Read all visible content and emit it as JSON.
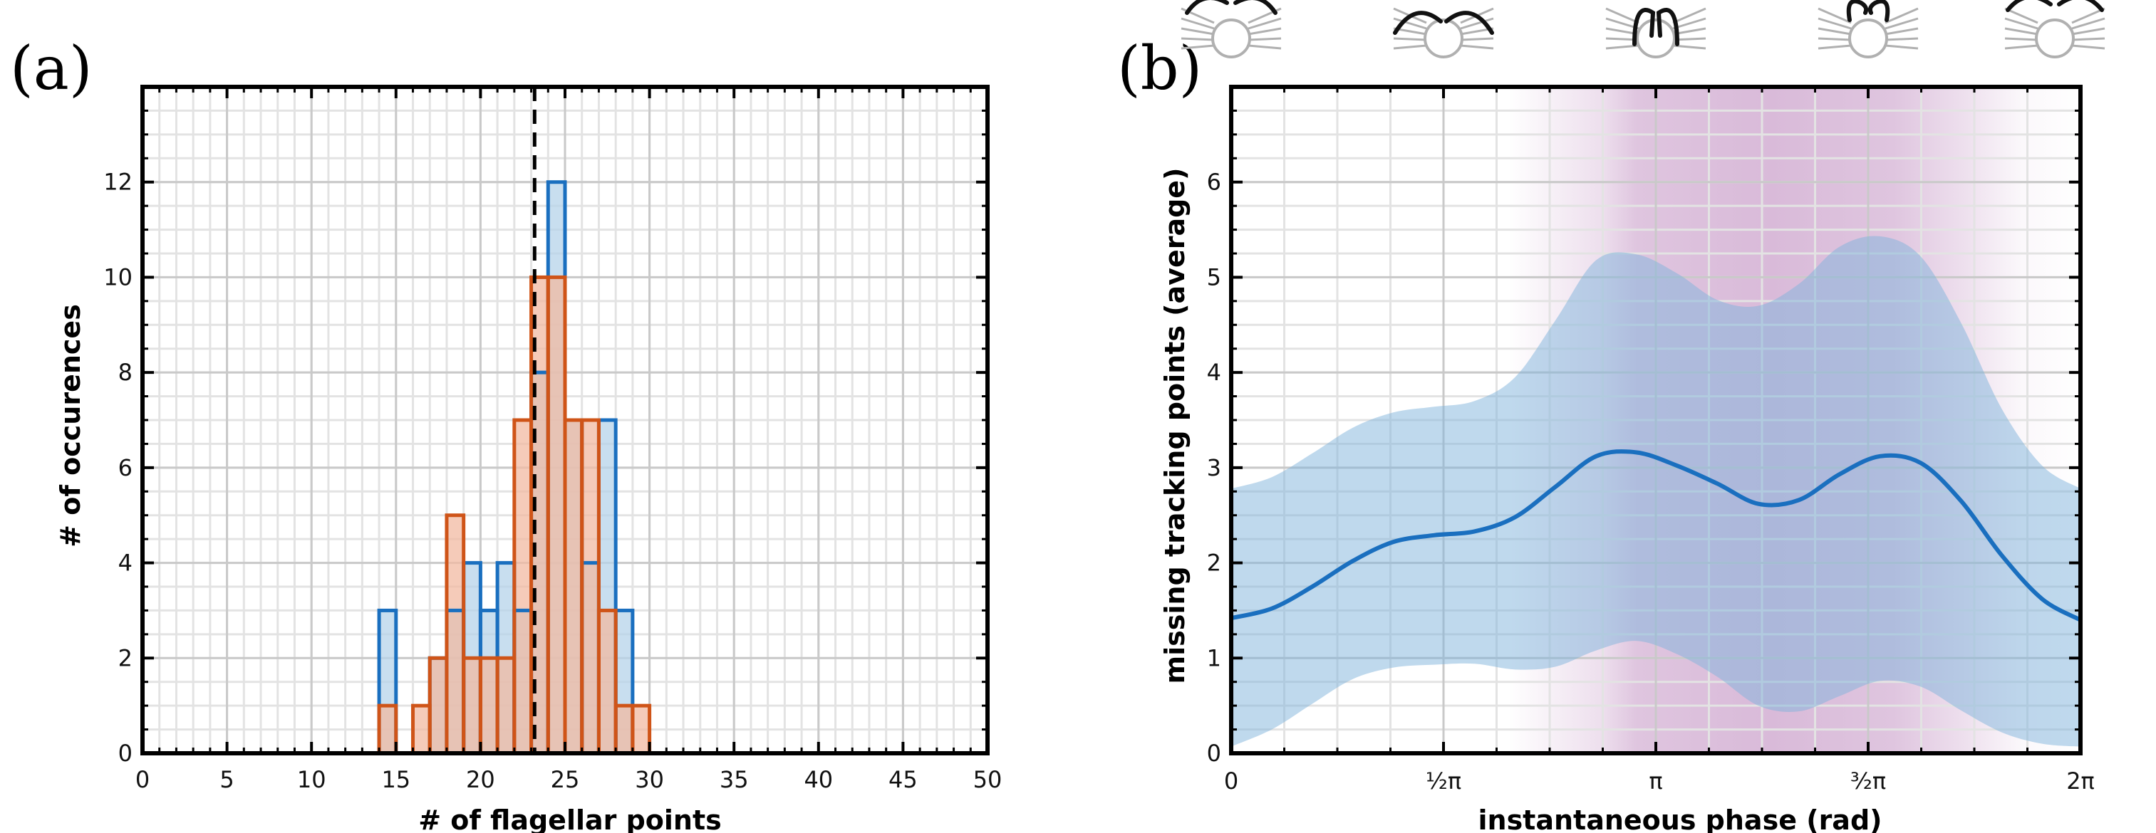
{
  "panels": {
    "a_label": "(a)",
    "b_label": "(b)"
  },
  "chart_data": [
    {
      "type": "bar",
      "subtype": "step-histogram",
      "title": "",
      "xlabel": "# of flagellar points",
      "ylabel": "# of occurences",
      "xlim": [
        0,
        50
      ],
      "ylim": [
        0,
        14
      ],
      "xticks": [
        0,
        5,
        10,
        15,
        20,
        25,
        30,
        35,
        40,
        45,
        50
      ],
      "yticks": [
        0,
        2,
        4,
        6,
        8,
        10,
        12
      ],
      "grid": true,
      "legend": "none",
      "bin_width": 1,
      "bin_starts": [
        14,
        15,
        16,
        17,
        18,
        19,
        20,
        21,
        22,
        23,
        24,
        25,
        26,
        27,
        28,
        29
      ],
      "series": [
        {
          "color": "#1a6fbf",
          "fill": "#b5d3ea",
          "values": [
            3,
            0,
            0,
            2,
            3,
            4,
            3,
            4,
            3,
            8,
            12,
            7,
            4,
            7,
            3,
            0
          ]
        },
        {
          "color": "#cf5418",
          "fill": "#f2b9a1",
          "values": [
            1,
            0,
            1,
            2,
            5,
            2,
            2,
            2,
            7,
            10,
            10,
            7,
            7,
            3,
            1,
            1
          ]
        }
      ],
      "vline": {
        "x": 23.2,
        "style": "dashed",
        "color": "#000000"
      }
    },
    {
      "type": "line",
      "subtype": "mean-with-band",
      "title": "",
      "xlabel": "instantaneous phase (rad)",
      "ylabel": "missing tracking points (average)",
      "xlim": [
        0,
        6.2832
      ],
      "ylim": [
        0,
        7
      ],
      "xticks": [
        0,
        1.5708,
        3.1416,
        4.7124,
        6.2832
      ],
      "xtick_labels": [
        "0",
        "½π",
        "π",
        "³⁄₂π",
        "2π"
      ],
      "yticks": [
        0,
        1,
        2,
        3,
        4,
        5,
        6
      ],
      "grid": true,
      "legend": "none",
      "shaded_phase_region": {
        "x_start": 2.05,
        "x_end": 5.85,
        "peak": 4.0,
        "color": "#9b4a9b"
      },
      "series": [
        {
          "role": "mean",
          "color": "#1a6fbf",
          "x": [
            0,
            0.3,
            0.6,
            0.9,
            1.2,
            1.5,
            1.8,
            2.1,
            2.4,
            2.7,
            3.0,
            3.3,
            3.6,
            3.9,
            4.2,
            4.5,
            4.8,
            5.1,
            5.4,
            5.7,
            6.0,
            6.2832
          ],
          "y": [
            1.42,
            1.52,
            1.75,
            2.02,
            2.22,
            2.29,
            2.33,
            2.48,
            2.8,
            3.12,
            3.16,
            3.02,
            2.83,
            2.62,
            2.66,
            2.93,
            3.12,
            3.05,
            2.65,
            2.08,
            1.62,
            1.4
          ]
        },
        {
          "role": "band-upper",
          "color": "#7fb4dc",
          "x": [
            0,
            0.3,
            0.6,
            0.9,
            1.2,
            1.5,
            1.8,
            2.1,
            2.4,
            2.7,
            3.0,
            3.3,
            3.6,
            3.9,
            4.2,
            4.5,
            4.8,
            5.1,
            5.4,
            5.7,
            6.0,
            6.2832
          ],
          "y": [
            2.78,
            2.9,
            3.15,
            3.42,
            3.58,
            3.64,
            3.7,
            3.95,
            4.55,
            5.18,
            5.24,
            5.04,
            4.76,
            4.7,
            4.93,
            5.32,
            5.43,
            5.22,
            4.52,
            3.62,
            3.02,
            2.78
          ]
        },
        {
          "role": "band-lower",
          "color": "#7fb4dc",
          "x": [
            0,
            0.3,
            0.6,
            0.9,
            1.2,
            1.5,
            1.8,
            2.1,
            2.4,
            2.7,
            3.0,
            3.3,
            3.6,
            3.9,
            4.2,
            4.5,
            4.8,
            5.1,
            5.4,
            5.7,
            6.0,
            6.2832
          ],
          "y": [
            0.07,
            0.25,
            0.52,
            0.78,
            0.9,
            0.93,
            0.94,
            0.88,
            0.91,
            1.08,
            1.18,
            1.04,
            0.8,
            0.5,
            0.44,
            0.6,
            0.76,
            0.7,
            0.45,
            0.22,
            0.1,
            0.07
          ]
        }
      ]
    }
  ]
}
